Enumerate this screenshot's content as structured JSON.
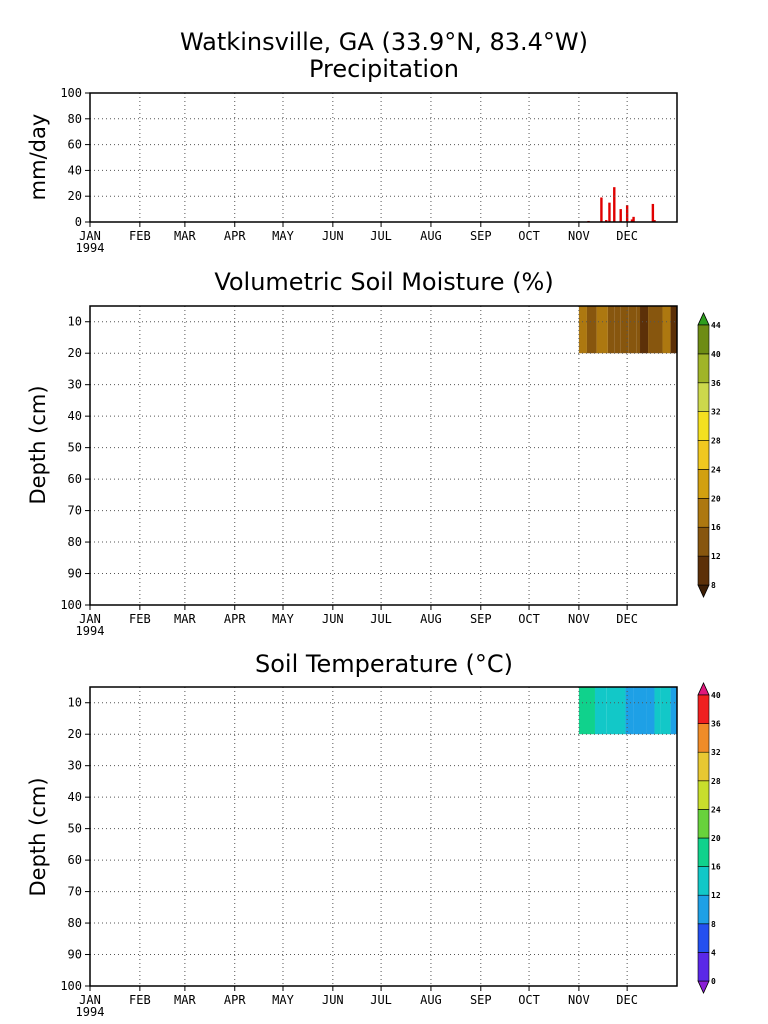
{
  "page": {
    "title": "Watkinsville, GA  (33.9°N, 83.4°W)"
  },
  "months": [
    "JAN",
    "FEB",
    "MAR",
    "APR",
    "MAY",
    "JUN",
    "JUL",
    "AUG",
    "SEP",
    "OCT",
    "NOV",
    "DEC"
  ],
  "year_label": "1994",
  "chart_data": [
    {
      "type": "bar",
      "title": "Precipitation",
      "xlabel": "",
      "ylabel": "mm/day",
      "ylim": [
        0,
        100
      ],
      "yticks": [
        0,
        20,
        40,
        60,
        80,
        100
      ],
      "xlim_day": [
        0,
        365
      ],
      "grid": true,
      "color": "#e00000",
      "x_day": [
        310,
        318,
        321,
        323,
        326,
        330,
        334,
        337,
        338,
        350,
        351
      ],
      "values": [
        0.8,
        19,
        1.5,
        15,
        27,
        10,
        13,
        2,
        4,
        14,
        1.5
      ]
    },
    {
      "type": "heatmap",
      "title": "Volumetric Soil Moisture (%)",
      "xlabel": "",
      "ylabel": "Depth (cm)",
      "ylim": [
        100,
        5
      ],
      "yticks": [
        10,
        20,
        30,
        40,
        50,
        60,
        70,
        80,
        90,
        100
      ],
      "xlim_day": [
        0,
        365
      ],
      "grid": true,
      "colorbar": {
        "ticks": [
          8,
          12,
          16,
          20,
          24,
          28,
          32,
          36,
          40,
          44
        ],
        "colors": [
          "#3c1e05",
          "#5c3008",
          "#87560e",
          "#ad7810",
          "#d2a010",
          "#f0c820",
          "#f4e020",
          "#ccd84c",
          "#a0b428",
          "#6e8c14",
          "#2f9e1e"
        ]
      },
      "segments": [
        {
          "start": 304,
          "end": 309,
          "value": 17
        },
        {
          "start": 309,
          "end": 315,
          "value": 15
        },
        {
          "start": 315,
          "end": 322,
          "value": 17
        },
        {
          "start": 322,
          "end": 326,
          "value": 14
        },
        {
          "start": 326,
          "end": 330,
          "value": 13
        },
        {
          "start": 330,
          "end": 335,
          "value": 15
        },
        {
          "start": 335,
          "end": 340,
          "value": 14
        },
        {
          "start": 340,
          "end": 342,
          "value": 13
        },
        {
          "start": 342,
          "end": 347,
          "value": 11
        },
        {
          "start": 347,
          "end": 356,
          "value": 15
        },
        {
          "start": 356,
          "end": 361,
          "value": 18
        },
        {
          "start": 361,
          "end": 365,
          "value": 11
        }
      ],
      "depth_range": [
        5,
        20
      ]
    },
    {
      "type": "heatmap",
      "title": "Soil Temperature (°C)",
      "xlabel": "",
      "ylabel": "Depth (cm)",
      "ylim": [
        100,
        5
      ],
      "yticks": [
        10,
        20,
        30,
        40,
        50,
        60,
        70,
        80,
        90,
        100
      ],
      "xlim_day": [
        0,
        365
      ],
      "grid": true,
      "colorbar": {
        "ticks": [
          0,
          4,
          8,
          12,
          16,
          20,
          24,
          28,
          32,
          36,
          40
        ],
        "colors": [
          "#8a1ed6",
          "#5a28e8",
          "#2450f0",
          "#1ea0e6",
          "#12c8c8",
          "#10d28c",
          "#68d23c",
          "#c8de2c",
          "#e8c832",
          "#f08c28",
          "#f02020",
          "#e0187c"
        ]
      },
      "segments": [
        {
          "start": 304,
          "end": 314,
          "value": 16
        },
        {
          "start": 314,
          "end": 321,
          "value": 14
        },
        {
          "start": 321,
          "end": 328,
          "value": 13
        },
        {
          "start": 328,
          "end": 333,
          "value": 12
        },
        {
          "start": 333,
          "end": 338,
          "value": 11
        },
        {
          "start": 338,
          "end": 346,
          "value": 10
        },
        {
          "start": 346,
          "end": 351,
          "value": 11
        },
        {
          "start": 351,
          "end": 355,
          "value": 13
        },
        {
          "start": 355,
          "end": 361,
          "value": 15
        },
        {
          "start": 361,
          "end": 365,
          "value": 9
        }
      ],
      "depth_range": [
        5,
        20
      ]
    }
  ]
}
